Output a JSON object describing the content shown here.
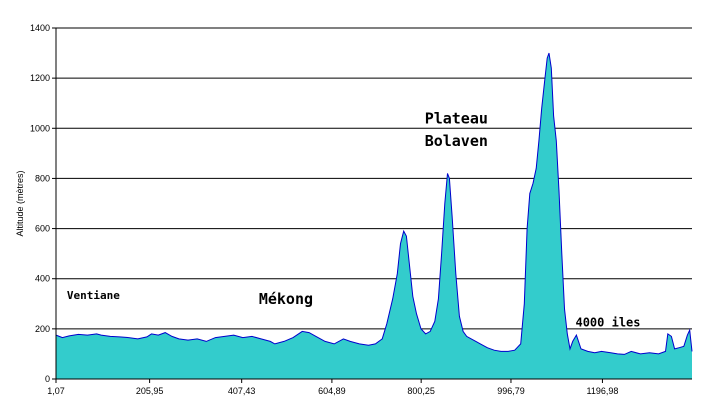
{
  "chart_data": {
    "type": "area",
    "ylabel": "Altitude (mètres)",
    "xlabel": "",
    "title": "",
    "ylim": [
      0,
      1400
    ],
    "xlim": [
      1.07,
      1393.0
    ],
    "yticks": [
      0,
      200,
      400,
      600,
      800,
      1000,
      1200,
      1400
    ],
    "xtick_labels": [
      "1,07",
      "205,95",
      "407,43",
      "604,89",
      "800,25",
      "996,79",
      "1196,98"
    ],
    "xtick_values": [
      1.07,
      205.95,
      407.43,
      604.89,
      800.25,
      996.79,
      1196.98
    ],
    "grid": "horizontal",
    "colors": {
      "fill": "#33cccc",
      "line": "#0000cc",
      "grid": "#000000"
    },
    "annotations": [
      {
        "text": "Ventiane",
        "x": 25,
        "y": 320,
        "size": "small"
      },
      {
        "text": "Mékong",
        "x": 445,
        "y": 300,
        "size": "big"
      },
      {
        "text": "Plateau",
        "x": 808,
        "y": 1020,
        "size": "big"
      },
      {
        "text": "Bolaven",
        "x": 808,
        "y": 930,
        "size": "big"
      },
      {
        "text": "4000 iles",
        "x": 1138,
        "y": 210,
        "size": "mid"
      }
    ],
    "series": [
      {
        "values": [
          [
            1,
            175
          ],
          [
            15,
            165
          ],
          [
            30,
            172
          ],
          [
            50,
            178
          ],
          [
            70,
            175
          ],
          [
            90,
            180
          ],
          [
            100,
            175
          ],
          [
            120,
            170
          ],
          [
            140,
            168
          ],
          [
            160,
            165
          ],
          [
            180,
            160
          ],
          [
            200,
            168
          ],
          [
            210,
            180
          ],
          [
            225,
            175
          ],
          [
            240,
            185
          ],
          [
            255,
            170
          ],
          [
            270,
            160
          ],
          [
            290,
            155
          ],
          [
            310,
            160
          ],
          [
            330,
            150
          ],
          [
            350,
            165
          ],
          [
            370,
            170
          ],
          [
            390,
            175
          ],
          [
            410,
            165
          ],
          [
            430,
            170
          ],
          [
            450,
            160
          ],
          [
            470,
            150
          ],
          [
            480,
            140
          ],
          [
            500,
            150
          ],
          [
            520,
            165
          ],
          [
            540,
            190
          ],
          [
            555,
            185
          ],
          [
            570,
            170
          ],
          [
            590,
            150
          ],
          [
            610,
            140
          ],
          [
            630,
            160
          ],
          [
            645,
            150
          ],
          [
            665,
            140
          ],
          [
            685,
            135
          ],
          [
            700,
            140
          ],
          [
            715,
            160
          ],
          [
            725,
            220
          ],
          [
            738,
            320
          ],
          [
            748,
            420
          ],
          [
            755,
            540
          ],
          [
            762,
            590
          ],
          [
            768,
            570
          ],
          [
            775,
            450
          ],
          [
            782,
            330
          ],
          [
            790,
            260
          ],
          [
            800,
            200
          ],
          [
            810,
            180
          ],
          [
            820,
            190
          ],
          [
            830,
            230
          ],
          [
            838,
            320
          ],
          [
            845,
            500
          ],
          [
            852,
            700
          ],
          [
            858,
            820
          ],
          [
            862,
            800
          ],
          [
            868,
            650
          ],
          [
            876,
            420
          ],
          [
            884,
            250
          ],
          [
            892,
            190
          ],
          [
            900,
            170
          ],
          [
            910,
            160
          ],
          [
            920,
            150
          ],
          [
            930,
            140
          ],
          [
            945,
            125
          ],
          [
            960,
            115
          ],
          [
            975,
            110
          ],
          [
            990,
            110
          ],
          [
            1005,
            115
          ],
          [
            1018,
            140
          ],
          [
            1026,
            300
          ],
          [
            1032,
            600
          ],
          [
            1038,
            740
          ],
          [
            1045,
            780
          ],
          [
            1052,
            840
          ],
          [
            1058,
            950
          ],
          [
            1064,
            1080
          ],
          [
            1070,
            1180
          ],
          [
            1076,
            1280
          ],
          [
            1080,
            1300
          ],
          [
            1085,
            1240
          ],
          [
            1090,
            1050
          ],
          [
            1096,
            950
          ],
          [
            1102,
            750
          ],
          [
            1108,
            500
          ],
          [
            1114,
            280
          ],
          [
            1120,
            180
          ],
          [
            1126,
            120
          ],
          [
            1132,
            150
          ],
          [
            1140,
            175
          ],
          [
            1150,
            120
          ],
          [
            1165,
            110
          ],
          [
            1180,
            105
          ],
          [
            1195,
            110
          ],
          [
            1215,
            105
          ],
          [
            1230,
            100
          ],
          [
            1245,
            98
          ],
          [
            1260,
            110
          ],
          [
            1280,
            100
          ],
          [
            1300,
            105
          ],
          [
            1320,
            100
          ],
          [
            1335,
            110
          ],
          [
            1340,
            180
          ],
          [
            1348,
            170
          ],
          [
            1355,
            120
          ],
          [
            1365,
            125
          ],
          [
            1375,
            130
          ],
          [
            1383,
            175
          ],
          [
            1388,
            195
          ],
          [
            1393,
            110
          ]
        ]
      }
    ]
  }
}
